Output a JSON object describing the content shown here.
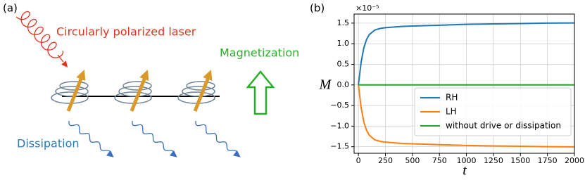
{
  "panel_labels": [
    "(a)",
    "(b)"
  ],
  "diagram": {
    "laser": "Circularly polarized laser",
    "magnetization": "Magnetization",
    "dissipation": "Dissipation"
  },
  "chart_data": {
    "type": "line",
    "x_label": "t",
    "y_label": "M",
    "y_multiplier": "×10⁻⁵",
    "x": [
      0,
      25,
      50,
      75,
      100,
      150,
      200,
      250,
      300,
      400,
      500,
      750,
      1000,
      1250,
      1500,
      1750,
      2000
    ],
    "series": [
      {
        "name": "RH",
        "color": "#1f77b4",
        "values": [
          0,
          0.55,
          0.9,
          1.1,
          1.22,
          1.33,
          1.37,
          1.39,
          1.4,
          1.42,
          1.43,
          1.45,
          1.47,
          1.48,
          1.49,
          1.5,
          1.505
        ]
      },
      {
        "name": "LH",
        "color": "#ff7f0e",
        "values": [
          0,
          -0.55,
          -0.9,
          -1.1,
          -1.22,
          -1.33,
          -1.37,
          -1.39,
          -1.4,
          -1.42,
          -1.43,
          -1.45,
          -1.47,
          -1.48,
          -1.49,
          -1.5,
          -1.505
        ]
      },
      {
        "name": "without drive or dissipation",
        "color": "#2ca02c",
        "values": [
          0,
          0,
          0,
          0,
          0,
          0,
          0,
          0,
          0,
          0,
          0,
          0,
          0,
          0,
          0,
          0,
          0
        ]
      }
    ],
    "xlim": [
      -40,
      2000
    ],
    "ylim": [
      -1.66,
      1.72
    ],
    "xticks": [
      0,
      250,
      500,
      750,
      1000,
      1250,
      1500,
      1750,
      2000
    ],
    "yticks": [
      {
        "value": -1.5,
        "label": "−1.5"
      },
      {
        "value": -1,
        "label": "−1.0"
      },
      {
        "value": -0.5,
        "label": "−0.5"
      },
      {
        "value": 0,
        "label": "0.0"
      },
      0.5,
      {
        "value": 1,
        "label": "1.0"
      },
      1.5
    ],
    "grid": true,
    "legend": "lower right"
  }
}
